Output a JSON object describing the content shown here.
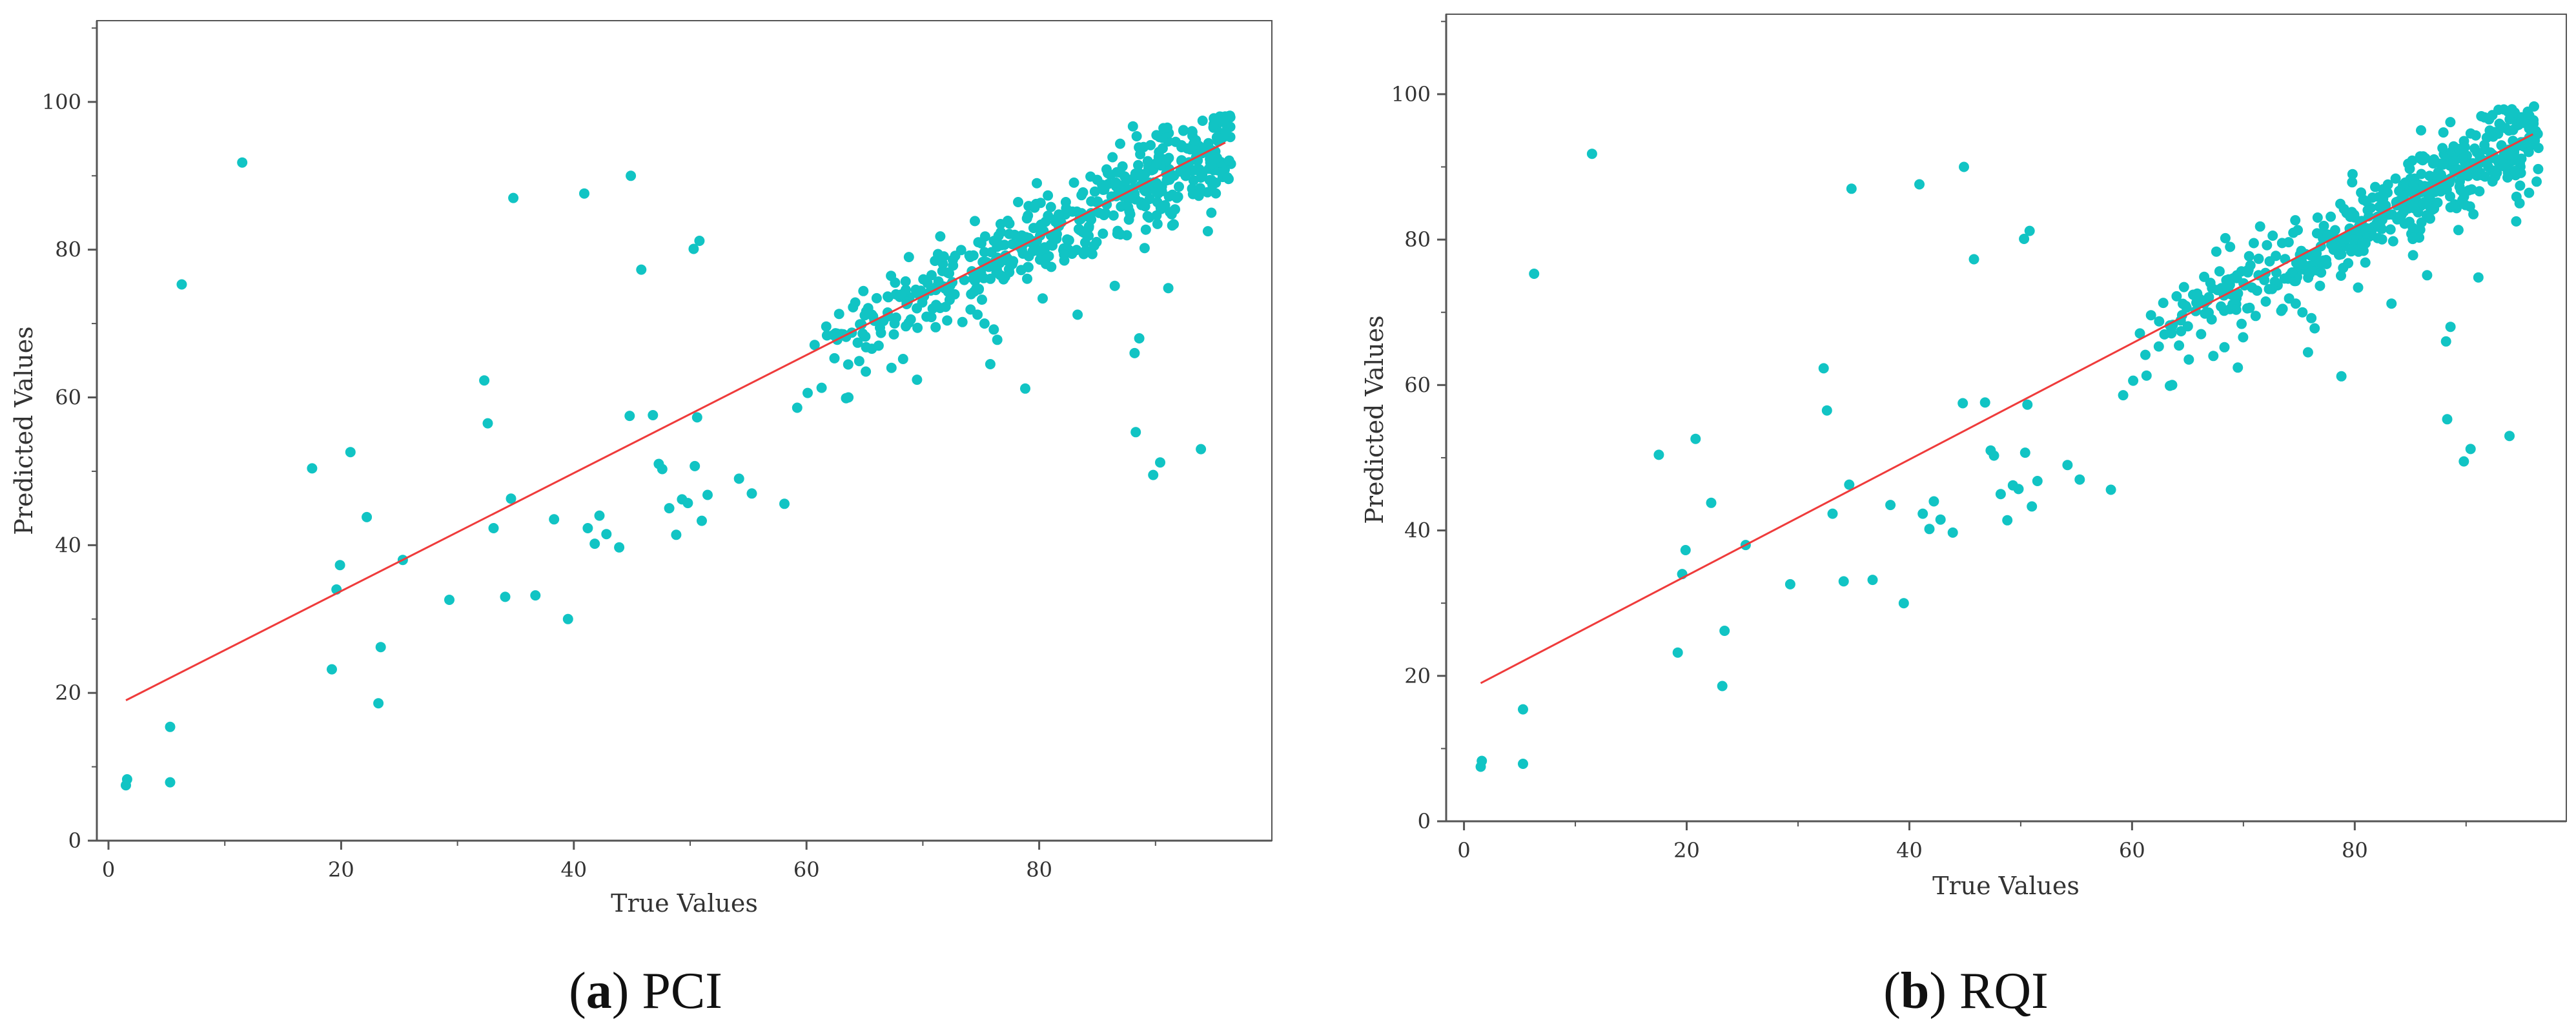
{
  "colors": {
    "point": "#11c4c4",
    "fit_line": "#ef3b3b",
    "axis": "#555555",
    "frame": "#555555"
  },
  "chart_data": [
    {
      "type": "scatter",
      "title": "",
      "xlabel": "True Values",
      "ylabel": "Predicted Values",
      "xlim": [
        -1,
        100
      ],
      "ylim": [
        0,
        111
      ],
      "xticks": [
        0,
        20,
        40,
        60,
        80
      ],
      "yticks": [
        0,
        20,
        40,
        60,
        80,
        100
      ],
      "grid": false,
      "legend": "none",
      "fit_line": {
        "x": [
          1.5,
          96
        ],
        "y": [
          19,
          94.5
        ]
      },
      "caption": {
        "letter": "a",
        "text": "PCI"
      },
      "outliers": [
        [
          1.5,
          7.5
        ],
        [
          1.6,
          8.3
        ],
        [
          5.3,
          15.4
        ],
        [
          5.3,
          7.9
        ],
        [
          6.3,
          75.3
        ],
        [
          11.5,
          91.8
        ],
        [
          17.5,
          50.4
        ],
        [
          19.2,
          23.2
        ],
        [
          19.6,
          34
        ],
        [
          19.9,
          37.3
        ],
        [
          20.8,
          52.6
        ],
        [
          22.2,
          43.8
        ],
        [
          23.2,
          18.6
        ],
        [
          23.4,
          26.2
        ],
        [
          25.3,
          38
        ],
        [
          29.3,
          32.6
        ],
        [
          32.3,
          62.3
        ],
        [
          32.6,
          56.5
        ],
        [
          33.1,
          42.3
        ],
        [
          34.1,
          33
        ],
        [
          34.6,
          46.3
        ],
        [
          34.8,
          87
        ],
        [
          36.7,
          33.2
        ],
        [
          38.3,
          43.5
        ],
        [
          39.5,
          30
        ],
        [
          40.9,
          87.6
        ],
        [
          41.2,
          42.3
        ],
        [
          41.8,
          40.2
        ],
        [
          42.2,
          44
        ],
        [
          42.8,
          41.5
        ],
        [
          43.9,
          39.7
        ],
        [
          44.8,
          57.5
        ],
        [
          44.9,
          90
        ],
        [
          45.8,
          77.3
        ],
        [
          46.8,
          57.6
        ],
        [
          47.3,
          51
        ],
        [
          47.6,
          50.3
        ],
        [
          48.2,
          45
        ],
        [
          48.8,
          41.4
        ],
        [
          49.3,
          46.2
        ],
        [
          49.8,
          45.7
        ],
        [
          50.3,
          80.1
        ],
        [
          50.4,
          50.7
        ],
        [
          50.6,
          57.3
        ],
        [
          50.8,
          81.2
        ],
        [
          51,
          43.3
        ],
        [
          51.5,
          46.8
        ],
        [
          54.2,
          49
        ],
        [
          55.3,
          47
        ],
        [
          58.1,
          45.6
        ],
        [
          59.2,
          58.6
        ],
        [
          60.1,
          60.6
        ],
        [
          60.7,
          67.1
        ],
        [
          61.3,
          61.3
        ],
        [
          61.7,
          69.6
        ],
        [
          62.4,
          65.3
        ],
        [
          62.8,
          71.3
        ],
        [
          63.4,
          59.9
        ],
        [
          63.6,
          60
        ],
        [
          64,
          72.2
        ],
        [
          63.4,
          68.2
        ],
        [
          64.4,
          67.4
        ],
        [
          65.1,
          63.5
        ],
        [
          66.2,
          67
        ],
        [
          67.3,
          64
        ],
        [
          68.3,
          65.2
        ],
        [
          68.8,
          79
        ],
        [
          69.5,
          62.4
        ],
        [
          70.1,
          73.7
        ],
        [
          70.4,
          75.5
        ],
        [
          71.1,
          69.5
        ],
        [
          71.5,
          81.8
        ],
        [
          72.3,
          73.2
        ],
        [
          73.4,
          70.2
        ],
        [
          74.1,
          71.9
        ],
        [
          74.7,
          71.2
        ],
        [
          75.3,
          70
        ],
        [
          75.8,
          64.5
        ],
        [
          76.1,
          69.2
        ],
        [
          76.4,
          67.8
        ],
        [
          78.8,
          61.2
        ],
        [
          79.8,
          89
        ],
        [
          80.3,
          73.4
        ],
        [
          83.3,
          71.2
        ],
        [
          86.5,
          75.1
        ],
        [
          88.2,
          66
        ],
        [
          88.3,
          55.3
        ],
        [
          88.6,
          68
        ],
        [
          89.8,
          49.5
        ],
        [
          90.4,
          51.2
        ],
        [
          91.1,
          74.8
        ],
        [
          93.9,
          53
        ],
        [
          94.5,
          82.5
        ],
        [
          94.8,
          85
        ]
      ],
      "cluster": {
        "x_from": 60,
        "x_to": 96.5,
        "spread": 2.6,
        "count": 480,
        "seed": 7
      }
    },
    {
      "type": "scatter",
      "title": "",
      "xlabel": "True Values",
      "ylabel": "Predicted Values",
      "xlim": [
        -1.6,
        99
      ],
      "ylim": [
        0,
        111
      ],
      "xticks": [
        0,
        20,
        40,
        60,
        80
      ],
      "yticks": [
        0,
        20,
        40,
        60,
        80,
        100
      ],
      "grid": false,
      "legend": "none",
      "fit_line": {
        "x": [
          1.5,
          96
        ],
        "y": [
          19,
          94.5
        ]
      },
      "caption": {
        "letter": "b",
        "text": "RQI"
      },
      "outliers": [
        [
          1.5,
          7.5
        ],
        [
          1.6,
          8.3
        ],
        [
          5.3,
          15.4
        ],
        [
          5.3,
          7.9
        ],
        [
          6.3,
          75.3
        ],
        [
          11.5,
          91.8
        ],
        [
          17.5,
          50.4
        ],
        [
          19.2,
          23.2
        ],
        [
          19.6,
          34
        ],
        [
          19.9,
          37.3
        ],
        [
          20.8,
          52.6
        ],
        [
          22.2,
          43.8
        ],
        [
          23.2,
          18.6
        ],
        [
          23.4,
          26.2
        ],
        [
          25.3,
          38
        ],
        [
          29.3,
          32.6
        ],
        [
          32.3,
          62.3
        ],
        [
          32.6,
          56.5
        ],
        [
          33.1,
          42.3
        ],
        [
          34.1,
          33
        ],
        [
          34.6,
          46.3
        ],
        [
          34.8,
          87
        ],
        [
          36.7,
          33.2
        ],
        [
          38.3,
          43.5
        ],
        [
          39.5,
          30
        ],
        [
          40.9,
          87.6
        ],
        [
          41.2,
          42.3
        ],
        [
          41.8,
          40.2
        ],
        [
          42.2,
          44
        ],
        [
          42.8,
          41.5
        ],
        [
          43.9,
          39.7
        ],
        [
          44.8,
          57.5
        ],
        [
          44.9,
          90
        ],
        [
          45.8,
          77.3
        ],
        [
          46.8,
          57.6
        ],
        [
          47.3,
          51
        ],
        [
          47.6,
          50.3
        ],
        [
          48.2,
          45
        ],
        [
          48.8,
          41.4
        ],
        [
          49.3,
          46.2
        ],
        [
          49.8,
          45.7
        ],
        [
          50.3,
          80.1
        ],
        [
          50.4,
          50.7
        ],
        [
          50.6,
          57.3
        ],
        [
          50.8,
          81.2
        ],
        [
          51,
          43.3
        ],
        [
          51.5,
          46.8
        ],
        [
          54.2,
          49
        ],
        [
          55.3,
          47
        ],
        [
          58.1,
          45.6
        ],
        [
          59.2,
          58.6
        ],
        [
          60.1,
          60.6
        ],
        [
          60.7,
          67.1
        ],
        [
          61.3,
          61.3
        ],
        [
          61.7,
          69.6
        ],
        [
          62.4,
          65.3
        ],
        [
          62.8,
          71.3
        ],
        [
          63.4,
          59.9
        ],
        [
          63.6,
          60
        ],
        [
          64,
          72.2
        ],
        [
          63.4,
          68.2
        ],
        [
          64.4,
          67.4
        ],
        [
          65.1,
          63.5
        ],
        [
          66.2,
          67
        ],
        [
          67.3,
          64
        ],
        [
          68.3,
          65.2
        ],
        [
          68.8,
          79
        ],
        [
          69.5,
          62.4
        ],
        [
          70.1,
          73.7
        ],
        [
          70.4,
          75.5
        ],
        [
          71.1,
          69.5
        ],
        [
          71.5,
          81.8
        ],
        [
          72.3,
          73.2
        ],
        [
          73.4,
          70.2
        ],
        [
          74.1,
          71.9
        ],
        [
          74.7,
          71.2
        ],
        [
          75.3,
          70
        ],
        [
          75.8,
          64.5
        ],
        [
          76.1,
          69.2
        ],
        [
          76.4,
          67.8
        ],
        [
          78.8,
          61.2
        ],
        [
          79.8,
          89
        ],
        [
          80.3,
          73.4
        ],
        [
          83.3,
          71.2
        ],
        [
          86.5,
          75.1
        ],
        [
          88.2,
          66
        ],
        [
          88.3,
          55.3
        ],
        [
          88.6,
          68
        ],
        [
          89.8,
          49.5
        ],
        [
          90.4,
          51.2
        ],
        [
          91.1,
          74.8
        ],
        [
          93.9,
          53
        ],
        [
          94.5,
          82.5
        ],
        [
          94.8,
          85
        ]
      ],
      "cluster": {
        "x_from": 60,
        "x_to": 96.5,
        "spread": 2.6,
        "count": 480,
        "seed": 11
      }
    }
  ]
}
